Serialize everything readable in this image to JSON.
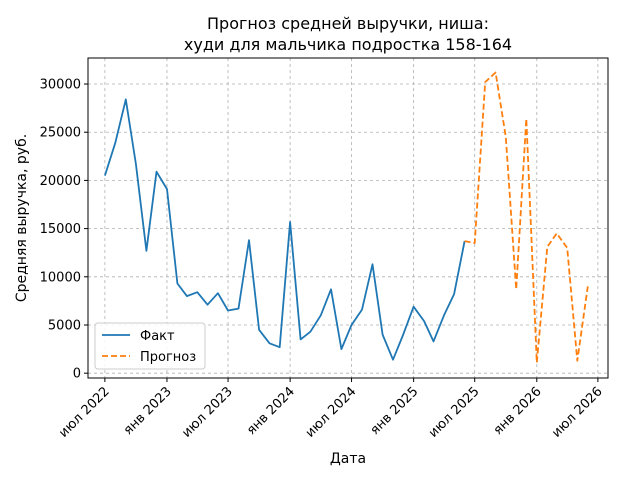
{
  "chart_data": {
    "type": "line",
    "title_line1": "Прогноз средней выручки, ниша:",
    "title_line2": "худи для мальчика подростка 158-164",
    "xlabel": "Дата",
    "ylabel": "Средняя выручка, руб.",
    "ylim": [
      -500,
      32700
    ],
    "xlim": [
      "2022-05-12",
      "2026-07-31"
    ],
    "grid": true,
    "legend_position": "lower-left",
    "x_ticks": [
      {
        "date": "2022-07-01",
        "label": "июл 2022"
      },
      {
        "date": "2023-01-01",
        "label": "янв 2023"
      },
      {
        "date": "2023-07-01",
        "label": "июл 2023"
      },
      {
        "date": "2024-01-01",
        "label": "янв 2024"
      },
      {
        "date": "2024-07-01",
        "label": "июл 2024"
      },
      {
        "date": "2025-01-01",
        "label": "янв 2025"
      },
      {
        "date": "2025-07-01",
        "label": "июл 2025"
      },
      {
        "date": "2026-01-01",
        "label": "янв 2026"
      },
      {
        "date": "2026-07-01",
        "label": "июл 2026"
      }
    ],
    "y_ticks": [
      0,
      5000,
      10000,
      15000,
      20000,
      25000,
      30000
    ],
    "series": [
      {
        "name": "Факт",
        "color": "#1f77b4",
        "style": "solid",
        "points": [
          {
            "x": "2022-07-01",
            "y": 20500
          },
          {
            "x": "2022-08-01",
            "y": 23900
          },
          {
            "x": "2022-09-01",
            "y": 28400
          },
          {
            "x": "2022-10-01",
            "y": 21700
          },
          {
            "x": "2022-11-01",
            "y": 12700
          },
          {
            "x": "2022-12-01",
            "y": 20900
          },
          {
            "x": "2023-01-01",
            "y": 19100
          },
          {
            "x": "2023-02-01",
            "y": 9300
          },
          {
            "x": "2023-03-01",
            "y": 8000
          },
          {
            "x": "2023-04-01",
            "y": 8400
          },
          {
            "x": "2023-05-01",
            "y": 7100
          },
          {
            "x": "2023-06-01",
            "y": 8300
          },
          {
            "x": "2023-07-01",
            "y": 6500
          },
          {
            "x": "2023-08-01",
            "y": 6700
          },
          {
            "x": "2023-09-01",
            "y": 13800
          },
          {
            "x": "2023-10-01",
            "y": 4500
          },
          {
            "x": "2023-11-01",
            "y": 3100
          },
          {
            "x": "2023-12-01",
            "y": 2700
          },
          {
            "x": "2024-01-01",
            "y": 15700
          },
          {
            "x": "2024-02-01",
            "y": 3500
          },
          {
            "x": "2024-03-01",
            "y": 4300
          },
          {
            "x": "2024-04-01",
            "y": 6000
          },
          {
            "x": "2024-05-01",
            "y": 8700
          },
          {
            "x": "2024-06-01",
            "y": 2500
          },
          {
            "x": "2024-07-01",
            "y": 5000
          },
          {
            "x": "2024-08-01",
            "y": 6600
          },
          {
            "x": "2024-09-01",
            "y": 11300
          },
          {
            "x": "2024-10-01",
            "y": 4000
          },
          {
            "x": "2024-11-01",
            "y": 1400
          },
          {
            "x": "2024-12-01",
            "y": 4000
          },
          {
            "x": "2025-01-01",
            "y": 6900
          },
          {
            "x": "2025-02-01",
            "y": 5400
          },
          {
            "x": "2025-03-01",
            "y": 3300
          },
          {
            "x": "2025-04-01",
            "y": 6000
          },
          {
            "x": "2025-05-01",
            "y": 8200
          },
          {
            "x": "2025-06-01",
            "y": 13700
          }
        ]
      },
      {
        "name": "Прогноз",
        "color": "#ff7f0e",
        "style": "dashed",
        "points": [
          {
            "x": "2025-06-01",
            "y": 13700
          },
          {
            "x": "2025-07-01",
            "y": 13500
          },
          {
            "x": "2025-08-01",
            "y": 30200
          },
          {
            "x": "2025-09-01",
            "y": 31200
          },
          {
            "x": "2025-10-01",
            "y": 24500
          },
          {
            "x": "2025-11-01",
            "y": 8700
          },
          {
            "x": "2025-12-01",
            "y": 26400
          },
          {
            "x": "2026-01-01",
            "y": 1100
          },
          {
            "x": "2026-02-01",
            "y": 13100
          },
          {
            "x": "2026-03-01",
            "y": 14500
          },
          {
            "x": "2026-04-01",
            "y": 13000
          },
          {
            "x": "2026-05-01",
            "y": 1300
          },
          {
            "x": "2026-06-01",
            "y": 9000
          }
        ]
      }
    ]
  }
}
